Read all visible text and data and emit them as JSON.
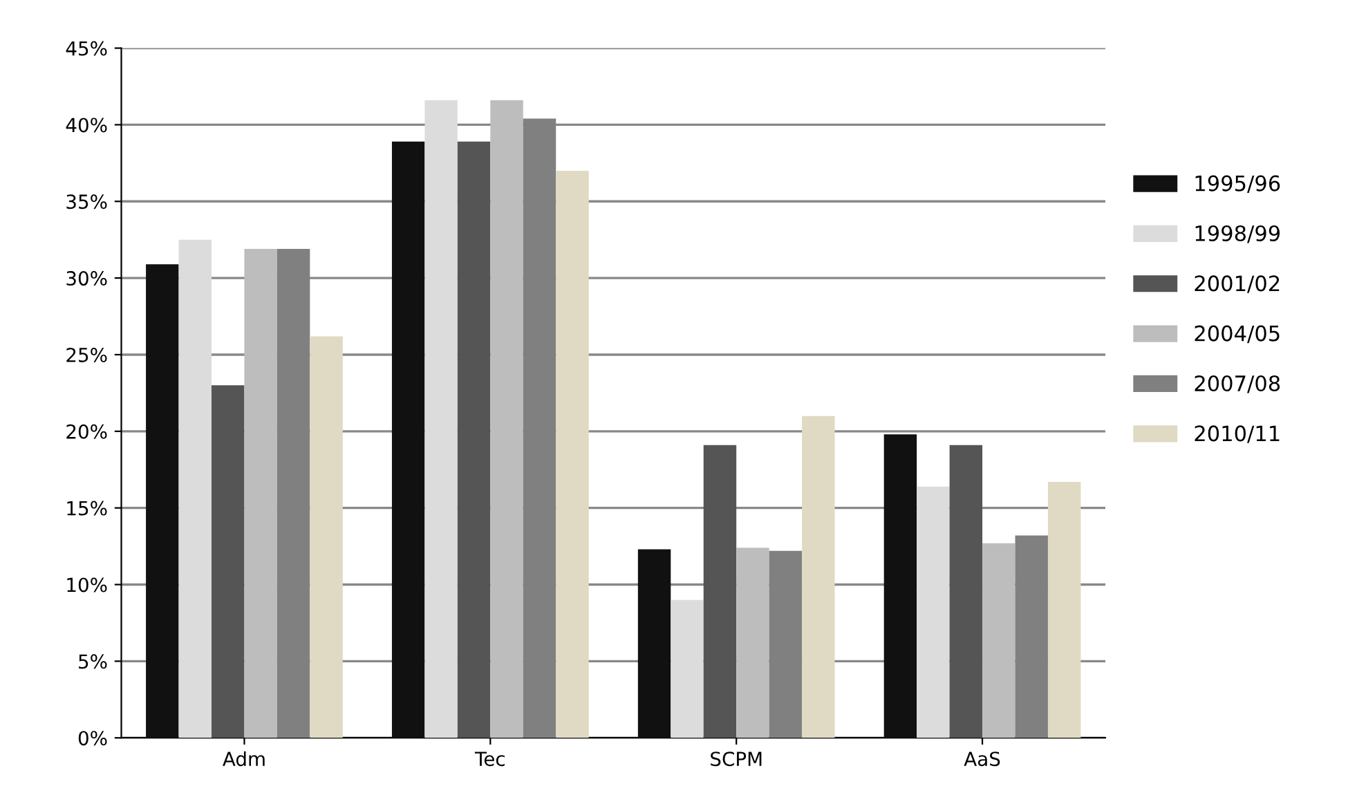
{
  "chart_data": {
    "type": "bar",
    "categories": [
      "Adm",
      "Tec",
      "SCPM",
      "AaS"
    ],
    "series": [
      {
        "name": "1995/96",
        "color": "#111111",
        "values": [
          30.9,
          38.9,
          12.3,
          19.8
        ]
      },
      {
        "name": "1998/99",
        "color": "#dcdcdc",
        "values": [
          32.5,
          41.6,
          9,
          16.4
        ]
      },
      {
        "name": "2001/02",
        "color": "#555555",
        "values": [
          23,
          38.9,
          19.1,
          19.1
        ]
      },
      {
        "name": "2004/05",
        "color": "#bdbdbd",
        "values": [
          31.9,
          41.6,
          12.4,
          12.7
        ]
      },
      {
        "name": "2007/08",
        "color": "#808080",
        "values": [
          31.9,
          40.4,
          12.2,
          13.2
        ]
      },
      {
        "name": "2010/11",
        "color": "#e0dac4",
        "values": [
          26.2,
          37,
          21,
          16.7
        ]
      }
    ],
    "ylim": [
      0,
      45
    ],
    "yticks": [
      {
        "value": 0,
        "label": "0%"
      },
      {
        "value": 5,
        "label": "5%"
      },
      {
        "value": 10,
        "label": "10%"
      },
      {
        "value": 15,
        "label": "15%"
      },
      {
        "value": 20,
        "label": "20%"
      },
      {
        "value": 25,
        "label": "25%"
      },
      {
        "value": 30,
        "label": "30%"
      },
      {
        "value": 35,
        "label": "35%"
      },
      {
        "value": 40,
        "label": "40%"
      },
      {
        "value": 45,
        "label": "45%"
      }
    ],
    "grid": "y",
    "legend": "right"
  }
}
